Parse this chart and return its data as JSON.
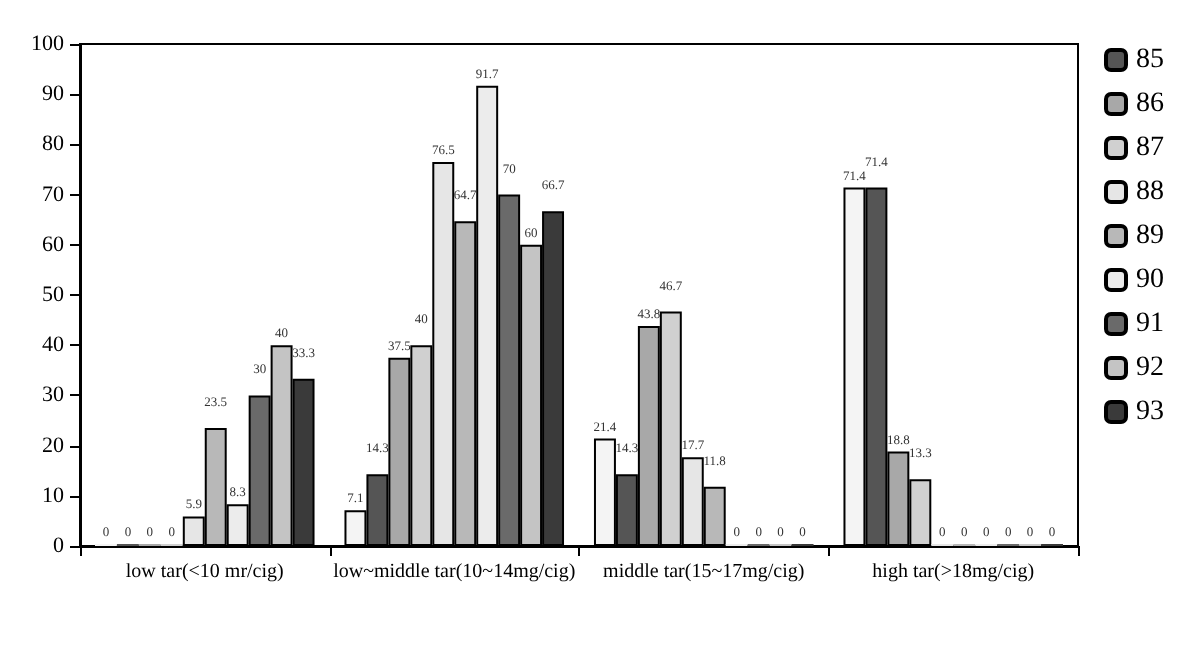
{
  "chart_data": {
    "type": "bar",
    "categories": [
      "low tar(<10 mr/cig)",
      "low~middle tar(10~14mg/cig)",
      "middle tar(15~17mg/cig)",
      "high tar(>18mg/cig)"
    ],
    "series": [
      {
        "color": "#f4f4f4",
        "values": [
          0,
          7.1,
          21.4,
          71.4
        ]
      },
      {
        "name": "85",
        "color": "#555555",
        "values": [
          0,
          14.3,
          14.3,
          71.4
        ]
      },
      {
        "name": "86",
        "color": "#a8a8a8",
        "values": [
          0,
          37.5,
          43.8,
          18.8
        ]
      },
      {
        "name": "87",
        "color": "#d0d0d0",
        "values": [
          0,
          40,
          46.7,
          13.3
        ]
      },
      {
        "name": "88",
        "color": "#e6e6e6",
        "values": [
          5.9,
          76.5,
          17.7,
          0
        ]
      },
      {
        "name": "89",
        "color": "#b8b8b8",
        "values": [
          23.5,
          64.7,
          11.8,
          0
        ]
      },
      {
        "name": "90",
        "color": "#ececec",
        "values": [
          8.3,
          91.7,
          0,
          0
        ]
      },
      {
        "name": "91",
        "color": "#6a6a6a",
        "values": [
          30,
          70,
          0,
          0
        ]
      },
      {
        "name": "92",
        "color": "#c4c4c4",
        "values": [
          40,
          60,
          0,
          0
        ]
      },
      {
        "name": "93",
        "color": "#3a3a3a",
        "values": [
          33.3,
          66.7,
          0,
          0
        ]
      }
    ],
    "ylim": [
      0,
      100
    ],
    "yticks": [
      0,
      10,
      20,
      30,
      40,
      50,
      60,
      70,
      80,
      90,
      100
    ],
    "grid": false,
    "legend": "top right",
    "data_labels": true
  }
}
